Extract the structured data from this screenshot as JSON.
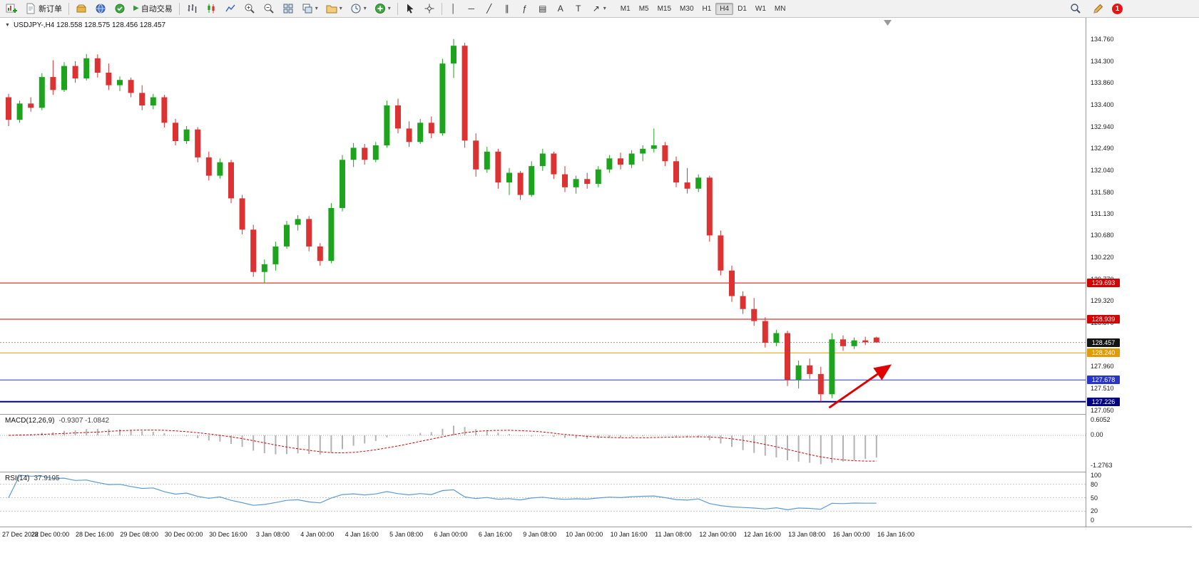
{
  "icons": {
    "caret": "▾",
    "play": "▶",
    "one_click": "▼",
    "vline": "│",
    "hline": "─",
    "trendline": "╱",
    "channel": "∥",
    "fibonacci": "ƒ",
    "shapes": "▤",
    "text_tool": "A",
    "label_tool": "T",
    "arrow_tool": "↗"
  },
  "toolbar": {
    "new_order_label": "新订单",
    "autotrading_label": "自动交易",
    "timeframes": [
      "M1",
      "M5",
      "M15",
      "M30",
      "H1",
      "H4",
      "D1",
      "W1",
      "MN"
    ],
    "active_timeframe": "H4",
    "notification_count": "1"
  },
  "chart": {
    "title": "USDJPY-,H4 128.558 128.575 128.456 128.457"
  },
  "chart_data": {
    "type": "candlestick",
    "symbol": "USDJPY-",
    "timeframe": "H4",
    "colors": {
      "up": "#1CA51C",
      "down": "#DC3232"
    },
    "ohlc": [
      [
        133.55,
        133.62,
        132.95,
        133.08
      ],
      [
        133.08,
        133.48,
        133.02,
        133.42
      ],
      [
        133.42,
        133.55,
        133.25,
        133.33
      ],
      [
        133.33,
        134.05,
        133.28,
        133.97
      ],
      [
        133.97,
        134.32,
        133.6,
        133.7
      ],
      [
        133.7,
        134.28,
        133.66,
        134.2
      ],
      [
        134.2,
        134.3,
        133.85,
        133.94
      ],
      [
        133.94,
        134.45,
        133.9,
        134.36
      ],
      [
        134.36,
        134.44,
        133.96,
        134.06
      ],
      [
        134.06,
        134.25,
        133.7,
        133.8
      ],
      [
        133.8,
        133.98,
        133.68,
        133.91
      ],
      [
        133.91,
        133.96,
        133.55,
        133.64
      ],
      [
        133.64,
        133.8,
        133.28,
        133.38
      ],
      [
        133.38,
        133.62,
        133.3,
        133.55
      ],
      [
        133.55,
        133.6,
        132.92,
        133.02
      ],
      [
        133.02,
        133.1,
        132.55,
        132.64
      ],
      [
        132.64,
        132.95,
        132.58,
        132.88
      ],
      [
        132.88,
        132.93,
        132.2,
        132.3
      ],
      [
        132.3,
        132.42,
        131.82,
        131.92
      ],
      [
        131.92,
        132.28,
        131.86,
        132.2
      ],
      [
        132.2,
        132.25,
        131.35,
        131.45
      ],
      [
        131.45,
        131.52,
        130.7,
        130.8
      ],
      [
        130.8,
        130.9,
        129.82,
        129.92
      ],
      [
        129.92,
        130.18,
        129.69,
        130.08
      ],
      [
        130.08,
        130.55,
        129.95,
        130.45
      ],
      [
        130.45,
        130.98,
        130.4,
        130.9
      ],
      [
        130.9,
        131.1,
        130.78,
        131.02
      ],
      [
        131.02,
        131.08,
        130.35,
        130.45
      ],
      [
        130.45,
        130.52,
        130.05,
        130.15
      ],
      [
        130.15,
        131.35,
        130.1,
        131.25
      ],
      [
        131.25,
        132.35,
        131.18,
        132.25
      ],
      [
        132.25,
        132.6,
        132.1,
        132.5
      ],
      [
        132.5,
        132.58,
        132.15,
        132.25
      ],
      [
        132.25,
        132.62,
        132.2,
        132.55
      ],
      [
        132.55,
        133.48,
        132.5,
        133.38
      ],
      [
        133.38,
        133.52,
        132.8,
        132.9
      ],
      [
        132.9,
        133.05,
        132.52,
        132.62
      ],
      [
        132.62,
        133.1,
        132.58,
        133.02
      ],
      [
        133.02,
        133.15,
        132.7,
        132.8
      ],
      [
        132.8,
        134.35,
        132.75,
        134.25
      ],
      [
        134.25,
        134.76,
        133.95,
        134.62
      ],
      [
        134.62,
        134.68,
        132.5,
        132.65
      ],
      [
        132.65,
        132.8,
        131.9,
        132.05
      ],
      [
        132.05,
        132.52,
        131.98,
        132.42
      ],
      [
        132.42,
        132.48,
        131.65,
        131.78
      ],
      [
        131.78,
        132.08,
        131.52,
        131.98
      ],
      [
        131.98,
        132.02,
        131.42,
        131.52
      ],
      [
        131.52,
        132.22,
        131.48,
        132.12
      ],
      [
        132.12,
        132.48,
        132.02,
        132.38
      ],
      [
        132.38,
        132.42,
        131.85,
        131.95
      ],
      [
        131.95,
        132.12,
        131.58,
        131.68
      ],
      [
        131.68,
        131.92,
        131.55,
        131.85
      ],
      [
        131.85,
        131.98,
        131.65,
        131.75
      ],
      [
        131.75,
        132.12,
        131.68,
        132.05
      ],
      [
        132.05,
        132.35,
        131.98,
        132.28
      ],
      [
        132.28,
        132.4,
        132.05,
        132.15
      ],
      [
        132.15,
        132.45,
        132.08,
        132.38
      ],
      [
        132.38,
        132.55,
        132.22,
        132.48
      ],
      [
        132.48,
        132.9,
        132.4,
        132.55
      ],
      [
        132.55,
        132.62,
        132.12,
        132.22
      ],
      [
        132.22,
        132.32,
        131.68,
        131.78
      ],
      [
        131.78,
        132.08,
        131.55,
        131.65
      ],
      [
        131.65,
        131.95,
        131.58,
        131.88
      ],
      [
        131.88,
        131.92,
        130.55,
        130.68
      ],
      [
        130.68,
        130.78,
        129.85,
        129.95
      ],
      [
        129.95,
        130.05,
        129.3,
        129.42
      ],
      [
        129.42,
        129.52,
        129.05,
        129.15
      ],
      [
        129.15,
        129.38,
        128.8,
        128.9
      ],
      [
        128.9,
        128.98,
        128.35,
        128.45
      ],
      [
        128.45,
        128.72,
        128.38,
        128.65
      ],
      [
        128.65,
        128.7,
        127.55,
        127.68
      ],
      [
        127.68,
        128.08,
        127.5,
        127.98
      ],
      [
        127.98,
        128.12,
        127.7,
        127.8
      ],
      [
        127.8,
        127.95,
        127.226,
        127.38
      ],
      [
        127.38,
        128.65,
        127.3,
        128.52
      ],
      [
        128.52,
        128.6,
        128.28,
        128.38
      ],
      [
        128.38,
        128.56,
        128.32,
        128.5
      ],
      [
        128.5,
        128.575,
        128.4,
        128.46
      ],
      [
        128.558,
        128.575,
        128.456,
        128.457
      ]
    ],
    "price_ticks": [
      "134.760",
      "134.300",
      "133.860",
      "133.400",
      "132.940",
      "132.490",
      "132.040",
      "131.580",
      "131.130",
      "130.680",
      "130.220",
      "129.770",
      "129.320",
      "128.870",
      "128.420",
      "127.960",
      "127.510",
      "127.050"
    ],
    "badges": [
      {
        "text": "129.693",
        "price": 129.693,
        "bg": "#D40000"
      },
      {
        "text": "128.939",
        "price": 128.939,
        "bg": "#D40000"
      },
      {
        "text": "128.457",
        "price": 128.457,
        "bg": "#141414"
      },
      {
        "text": "128.240",
        "price": 128.24,
        "bg": "#E39B00"
      },
      {
        "text": "127.678",
        "price": 127.678,
        "bg": "#2A35C8"
      },
      {
        "text": "127.226",
        "price": 127.226,
        "bg": "#000080"
      }
    ],
    "hlines": [
      {
        "price": 129.693,
        "color": "#D40000",
        "w": 1
      },
      {
        "price": 128.939,
        "color": "#D40000",
        "w": 1
      },
      {
        "price": 128.457,
        "color": "#999999",
        "w": 1,
        "dash": "2,2"
      },
      {
        "price": 128.24,
        "color": "#E39B00",
        "w": 1
      },
      {
        "price": 127.678,
        "color": "#2A35C8",
        "w": 1
      },
      {
        "price": 127.226,
        "color": "#000080",
        "w": 2
      }
    ],
    "arrow": {
      "from_bar": 74,
      "from_price": 127.1,
      "to_bar": 79.3,
      "to_price": 127.95,
      "color": "#E00000"
    },
    "x_labels": [
      "27 Dec 2022",
      "28 Dec 00:00",
      "28 Dec 16:00",
      "29 Dec 08:00",
      "30 Dec 00:00",
      "30 Dec 16:00",
      "3 Jan 08:00",
      "4 Jan 00:00",
      "4 Jan 16:00",
      "5 Jan 08:00",
      "6 Jan 00:00",
      "6 Jan 16:00",
      "9 Jan 08:00",
      "10 Jan 00:00",
      "10 Jan 16:00",
      "11 Jan 08:00",
      "12 Jan 00:00",
      "12 Jan 16:00",
      "13 Jan 08:00",
      "16 Jan 00:00",
      "16 Jan 16:00"
    ],
    "macd": {
      "name": "MACD(12,26,9)",
      "values": "-0.9307 -1.0842",
      "axis": [
        {
          "text": "0.6052",
          "value": 0.6052
        },
        {
          "text": "0.00",
          "value": 0
        },
        {
          "text": "-1.2763",
          "value": -1.2763
        }
      ]
    },
    "rsi": {
      "name": "RSI(14)",
      "value": "37.9195",
      "levels": [
        80,
        50,
        20
      ],
      "axis": [
        {
          "text": "100",
          "value": 100
        },
        {
          "text": "80",
          "value": 80
        },
        {
          "text": "50",
          "value": 50
        },
        {
          "text": "20",
          "value": 20
        },
        {
          "text": "0",
          "value": 0
        }
      ]
    }
  }
}
